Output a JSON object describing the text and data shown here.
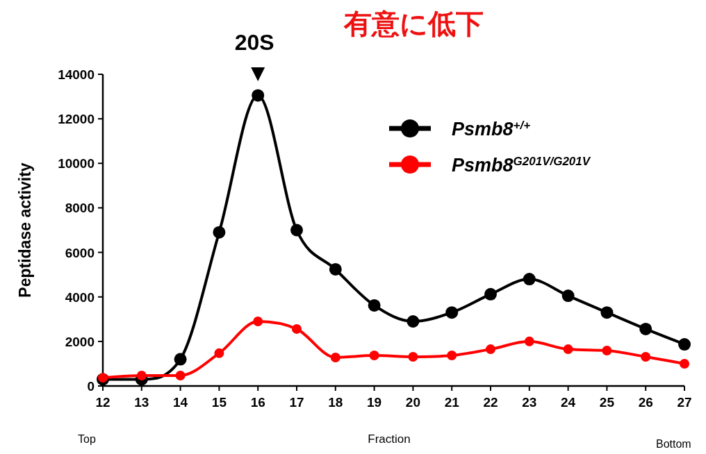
{
  "chart_data": {
    "type": "line",
    "title": "有意に低下",
    "xlabel": "Fraction",
    "ylabel": "Peptidase activity",
    "x": [
      12,
      13,
      14,
      15,
      16,
      17,
      18,
      19,
      20,
      21,
      22,
      23,
      24,
      25,
      26,
      27
    ],
    "xlim": [
      12,
      27
    ],
    "xticks": [
      12,
      13,
      14,
      15,
      16,
      17,
      18,
      19,
      20,
      21,
      22,
      23,
      24,
      25,
      26,
      27
    ],
    "ylim": [
      0,
      14000
    ],
    "yticks": [
      0,
      2000,
      4000,
      6000,
      8000,
      10000,
      12000,
      14000
    ],
    "series": [
      {
        "name": "Psmb8$^{+/+}$",
        "color": "#000000",
        "values": [
          300,
          300,
          1200,
          6900,
          13050,
          7000,
          5240,
          3620,
          2900,
          3300,
          4120,
          4800,
          4050,
          3300,
          2560,
          1870
        ]
      },
      {
        "name": "Psmb8$^{G201V/G201V}$",
        "color": "#ff0000",
        "values": [
          370,
          470,
          470,
          1470,
          2900,
          2560,
          1280,
          1370,
          1310,
          1370,
          1650,
          2000,
          1650,
          1590,
          1310,
          1000
        ]
      }
    ],
    "annotations": [
      {
        "text": "20S",
        "x": 16,
        "y": 14000
      },
      "Top",
      "Bottom"
    ],
    "grid": false,
    "legend": "top right",
    "marker": "circle",
    "line_style": "solid"
  }
}
